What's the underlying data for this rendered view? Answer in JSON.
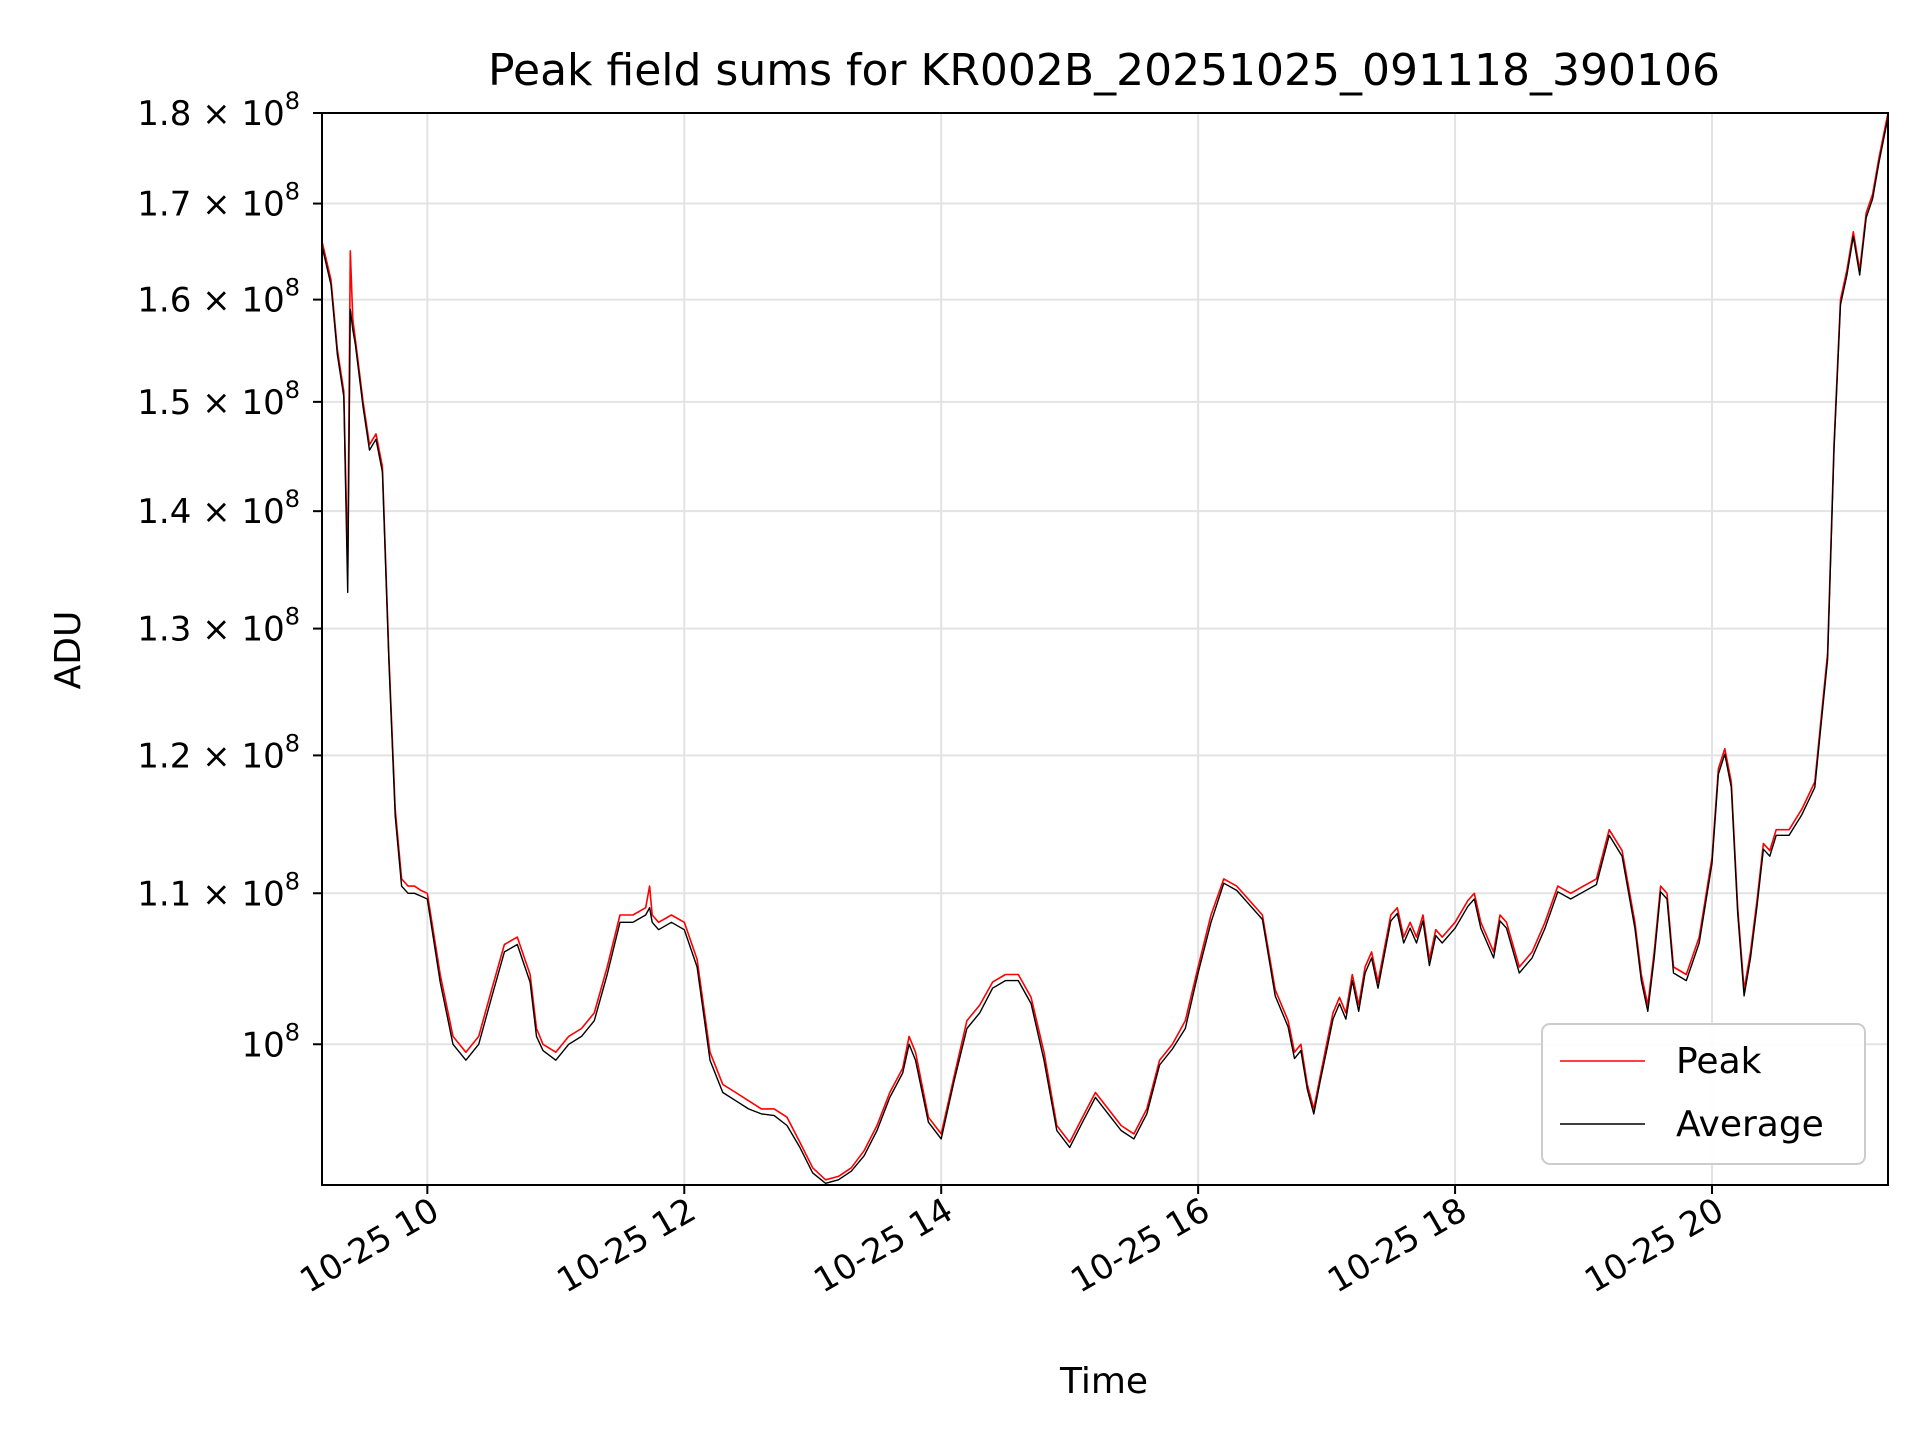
{
  "chart_data": {
    "type": "line",
    "title": "Peak field sums for KR002B_20251025_091118_390106",
    "xlabel": "Time",
    "ylabel": "ADU",
    "yscale": "log",
    "grid": true,
    "legend_position": "lower-right",
    "xlim": [
      9.18,
      21.37
    ],
    "ylim": [
      91500000,
      180000000
    ],
    "x_ticks": [
      {
        "value": 10,
        "label": "10-25 10"
      },
      {
        "value": 12,
        "label": "10-25 12"
      },
      {
        "value": 14,
        "label": "10-25 14"
      },
      {
        "value": 16,
        "label": "10-25 16"
      },
      {
        "value": 18,
        "label": "10-25 18"
      },
      {
        "value": 20,
        "label": "10-25 20"
      }
    ],
    "y_ticks": [
      {
        "value": 100000000,
        "mantissa": "",
        "exponent": "8"
      },
      {
        "value": 110000000,
        "mantissa": "1.1",
        "exponent": "8"
      },
      {
        "value": 120000000,
        "mantissa": "1.2",
        "exponent": "8"
      },
      {
        "value": 130000000,
        "mantissa": "1.3",
        "exponent": "8"
      },
      {
        "value": 140000000,
        "mantissa": "1.4",
        "exponent": "8"
      },
      {
        "value": 150000000,
        "mantissa": "1.5",
        "exponent": "8"
      },
      {
        "value": 160000000,
        "mantissa": "1.6",
        "exponent": "8"
      },
      {
        "value": 170000000,
        "mantissa": "1.7",
        "exponent": "8"
      },
      {
        "value": 180000000,
        "mantissa": "1.8",
        "exponent": "8"
      }
    ],
    "x_units": "hour of day (2025-10-25)",
    "series": [
      {
        "name": "Peak",
        "color": "#ff0000",
        "x": [
          9.18,
          9.25,
          9.3,
          9.35,
          9.38,
          9.4,
          9.42,
          9.44,
          9.5,
          9.55,
          9.6,
          9.65,
          9.7,
          9.75,
          9.8,
          9.85,
          9.9,
          9.95,
          10.0,
          10.1,
          10.2,
          10.3,
          10.4,
          10.5,
          10.6,
          10.7,
          10.8,
          10.85,
          10.9,
          11.0,
          11.1,
          11.2,
          11.3,
          11.4,
          11.5,
          11.6,
          11.7,
          11.73,
          11.75,
          11.8,
          11.9,
          12.0,
          12.1,
          12.2,
          12.3,
          12.4,
          12.5,
          12.6,
          12.7,
          12.8,
          12.9,
          13.0,
          13.1,
          13.2,
          13.3,
          13.4,
          13.5,
          13.6,
          13.7,
          13.75,
          13.8,
          13.9,
          14.0,
          14.1,
          14.2,
          14.3,
          14.4,
          14.5,
          14.6,
          14.7,
          14.8,
          14.9,
          15.0,
          15.1,
          15.2,
          15.3,
          15.4,
          15.5,
          15.6,
          15.7,
          15.8,
          15.9,
          16.0,
          16.1,
          16.2,
          16.3,
          16.4,
          16.5,
          16.6,
          16.7,
          16.75,
          16.8,
          16.85,
          16.9,
          16.95,
          17.0,
          17.05,
          17.1,
          17.15,
          17.2,
          17.25,
          17.3,
          17.35,
          17.4,
          17.5,
          17.55,
          17.6,
          17.65,
          17.7,
          17.75,
          17.8,
          17.85,
          17.9,
          18.0,
          18.1,
          18.15,
          18.2,
          18.25,
          18.3,
          18.35,
          18.4,
          18.5,
          18.6,
          18.7,
          18.8,
          18.9,
          19.0,
          19.1,
          19.2,
          19.3,
          19.4,
          19.45,
          19.5,
          19.55,
          19.6,
          19.65,
          19.7,
          19.8,
          19.9,
          20.0,
          20.05,
          20.1,
          20.15,
          20.2,
          20.25,
          20.3,
          20.35,
          20.4,
          20.45,
          20.5,
          20.6,
          20.7,
          20.8,
          20.9,
          20.95,
          21.0,
          21.05,
          21.1,
          21.15,
          21.2,
          21.25,
          21.3,
          21.37
        ],
        "y": [
          166000000,
          162000000,
          155000000,
          151000000,
          135000000,
          165000000,
          158000000,
          156000000,
          150000000,
          146000000,
          147000000,
          144000000,
          128000000,
          116000000,
          111000000,
          110500000,
          110500000,
          110200000,
          110000000,
          104500000,
          100500000,
          99500000,
          100500000,
          103500000,
          106500000,
          107000000,
          104500000,
          101000000,
          100000000,
          99500000,
          100500000,
          101000000,
          102000000,
          105000000,
          108500000,
          108500000,
          109000000,
          110500000,
          108500000,
          108000000,
          108500000,
          108000000,
          105500000,
          99500000,
          97500000,
          97000000,
          96500000,
          96000000,
          96000000,
          95500000,
          94000000,
          92500000,
          91800000,
          92000000,
          92500000,
          93500000,
          95000000,
          97000000,
          98500000,
          100500000,
          99500000,
          95500000,
          94500000,
          98000000,
          101500000,
          102500000,
          104000000,
          104500000,
          104500000,
          103000000,
          99500000,
          95000000,
          94000000,
          95500000,
          97000000,
          96000000,
          95000000,
          94500000,
          96000000,
          99000000,
          100000000,
          101500000,
          105000000,
          108500000,
          111000000,
          110500000,
          109500000,
          108500000,
          103500000,
          101500000,
          99500000,
          100000000,
          97500000,
          96000000,
          98000000,
          100000000,
          102000000,
          103000000,
          102000000,
          104500000,
          102500000,
          105000000,
          106000000,
          104000000,
          108500000,
          109000000,
          107000000,
          108000000,
          107000000,
          108500000,
          105500000,
          107500000,
          107000000,
          108000000,
          109500000,
          110000000,
          108000000,
          107000000,
          106000000,
          108500000,
          108000000,
          105000000,
          106000000,
          108000000,
          110500000,
          110000000,
          110500000,
          111000000,
          114500000,
          113000000,
          108000000,
          104500000,
          102500000,
          106000000,
          110500000,
          110000000,
          105000000,
          104500000,
          107000000,
          112500000,
          119000000,
          120500000,
          118000000,
          109000000,
          103500000,
          106000000,
          109500000,
          113500000,
          113000000,
          114500000,
          114500000,
          116000000,
          118000000,
          128000000,
          146000000,
          160000000,
          163000000,
          167000000,
          163000000,
          169000000,
          171000000,
          175000000,
          180000000
        ]
      },
      {
        "name": "Average",
        "color": "#000000",
        "x": [
          9.18,
          9.25,
          9.3,
          9.35,
          9.38,
          9.4,
          9.42,
          9.44,
          9.5,
          9.55,
          9.6,
          9.65,
          9.7,
          9.75,
          9.8,
          9.85,
          9.9,
          9.95,
          10.0,
          10.1,
          10.2,
          10.3,
          10.4,
          10.5,
          10.6,
          10.7,
          10.8,
          10.85,
          10.9,
          11.0,
          11.1,
          11.2,
          11.3,
          11.4,
          11.5,
          11.6,
          11.7,
          11.73,
          11.75,
          11.8,
          11.9,
          12.0,
          12.1,
          12.2,
          12.3,
          12.4,
          12.5,
          12.6,
          12.7,
          12.8,
          12.9,
          13.0,
          13.1,
          13.2,
          13.3,
          13.4,
          13.5,
          13.6,
          13.7,
          13.75,
          13.8,
          13.9,
          14.0,
          14.1,
          14.2,
          14.3,
          14.4,
          14.5,
          14.6,
          14.7,
          14.8,
          14.9,
          15.0,
          15.1,
          15.2,
          15.3,
          15.4,
          15.5,
          15.6,
          15.7,
          15.8,
          15.9,
          16.0,
          16.1,
          16.2,
          16.3,
          16.4,
          16.5,
          16.6,
          16.7,
          16.75,
          16.8,
          16.85,
          16.9,
          16.95,
          17.0,
          17.05,
          17.1,
          17.15,
          17.2,
          17.25,
          17.3,
          17.35,
          17.4,
          17.5,
          17.55,
          17.6,
          17.65,
          17.7,
          17.75,
          17.8,
          17.85,
          17.9,
          18.0,
          18.1,
          18.15,
          18.2,
          18.25,
          18.3,
          18.35,
          18.4,
          18.5,
          18.6,
          18.7,
          18.8,
          18.9,
          19.0,
          19.1,
          19.2,
          19.3,
          19.4,
          19.45,
          19.5,
          19.55,
          19.6,
          19.65,
          19.7,
          19.8,
          19.9,
          20.0,
          20.05,
          20.1,
          20.15,
          20.2,
          20.25,
          20.3,
          20.35,
          20.4,
          20.45,
          20.5,
          20.6,
          20.7,
          20.8,
          20.9,
          20.95,
          21.0,
          21.05,
          21.1,
          21.15,
          21.2,
          21.25,
          21.3,
          21.37
        ],
        "y": [
          165500000,
          161500000,
          154500000,
          150500000,
          133000000,
          159000000,
          157000000,
          155500000,
          149500000,
          145500000,
          146500000,
          143500000,
          127500000,
          115500000,
          110500000,
          110000000,
          110000000,
          109800000,
          109600000,
          104000000,
          100000000,
          99000000,
          100000000,
          103000000,
          106000000,
          106500000,
          104000000,
          100500000,
          99600000,
          99000000,
          100000000,
          100500000,
          101500000,
          104500000,
          108000000,
          108000000,
          108500000,
          109000000,
          108000000,
          107500000,
          108000000,
          107500000,
          105000000,
          99000000,
          97000000,
          96500000,
          96000000,
          95700000,
          95600000,
          95000000,
          93700000,
          92200000,
          91600000,
          91800000,
          92300000,
          93200000,
          94700000,
          96700000,
          98200000,
          100000000,
          99000000,
          95200000,
          94200000,
          97700000,
          101000000,
          102000000,
          103600000,
          104100000,
          104100000,
          102600000,
          99000000,
          94700000,
          93700000,
          95200000,
          96700000,
          95700000,
          94700000,
          94200000,
          95700000,
          98700000,
          99700000,
          101000000,
          104600000,
          108000000,
          110700000,
          110200000,
          109200000,
          108200000,
          103100000,
          101100000,
          99100000,
          99600000,
          97200000,
          95700000,
          97700000,
          99600000,
          101600000,
          102600000,
          101600000,
          104100000,
          102100000,
          104600000,
          105600000,
          103600000,
          108100000,
          108600000,
          106600000,
          107600000,
          106600000,
          108100000,
          105100000,
          107100000,
          106600000,
          107600000,
          109100000,
          109600000,
          107600000,
          106600000,
          105600000,
          108100000,
          107600000,
          104600000,
          105600000,
          107600000,
          110100000,
          109600000,
          110100000,
          110600000,
          114100000,
          112600000,
          107600000,
          104100000,
          102100000,
          105600000,
          110100000,
          109600000,
          104600000,
          104100000,
          106600000,
          112100000,
          118600000,
          120100000,
          117600000,
          108600000,
          103100000,
          105600000,
          109100000,
          113100000,
          112600000,
          114100000,
          114100000,
          115600000,
          117600000,
          127500000,
          145500000,
          159500000,
          162500000,
          166500000,
          162500000,
          168500000,
          170500000,
          174500000,
          179500000
        ]
      }
    ]
  }
}
